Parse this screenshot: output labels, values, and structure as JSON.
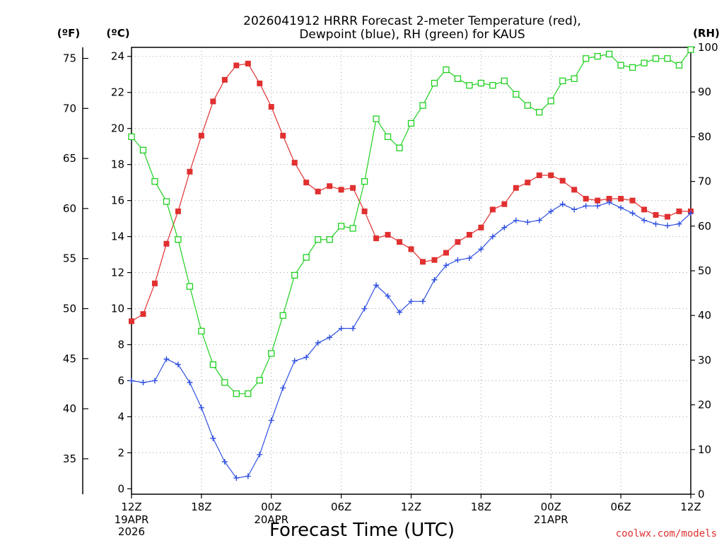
{
  "chart_data": {
    "type": "line",
    "title_line1": "2026041912 HRRR Forecast 2-meter Temperature (red),",
    "title_line2": "Dewpoint (blue), RH (green) for KAUS",
    "xlabel": "Forecast Time (UTC)",
    "credit": "coolwx.com/models",
    "units": {
      "fahrenheit": "(ºF)",
      "celsius": "(ºC)",
      "rh": "(RH)"
    },
    "x_tick_labels": [
      {
        "hour": 0,
        "line1": "12Z",
        "line2": "19APR",
        "line3": "2026"
      },
      {
        "hour": 6,
        "line1": "18Z",
        "line2": "",
        "line3": ""
      },
      {
        "hour": 12,
        "line1": "00Z",
        "line2": "20APR",
        "line3": ""
      },
      {
        "hour": 18,
        "line1": "06Z",
        "line2": "",
        "line3": ""
      },
      {
        "hour": 24,
        "line1": "12Z",
        "line2": "",
        "line3": ""
      },
      {
        "hour": 30,
        "line1": "18Z",
        "line2": "",
        "line3": ""
      },
      {
        "hour": 36,
        "line1": "00Z",
        "line2": "21APR",
        "line3": ""
      },
      {
        "hour": 42,
        "line1": "06Z",
        "line2": "",
        "line3": ""
      },
      {
        "hour": 48,
        "line1": "12Z",
        "line2": "",
        "line3": ""
      }
    ],
    "xlim": [
      0,
      48
    ],
    "celsius_ticks": [
      0,
      2,
      4,
      6,
      8,
      10,
      12,
      14,
      16,
      18,
      20,
      22,
      24
    ],
    "ylim_celsius": [
      -0.3,
      24.5
    ],
    "fahrenheit_ticks": [
      35,
      40,
      45,
      50,
      55,
      60,
      65,
      70,
      75
    ],
    "rh_ticks": [
      0,
      10,
      20,
      30,
      40,
      50,
      60,
      70,
      80,
      90,
      100
    ],
    "ylim_rh": [
      0,
      100
    ],
    "grid": true,
    "series": [
      {
        "name": "Temperature",
        "color": "#e03030",
        "marker": "filled-square",
        "units": "celsius",
        "values": [
          9.3,
          9.7,
          11.4,
          13.6,
          15.4,
          17.6,
          19.6,
          21.5,
          22.7,
          23.5,
          23.6,
          22.5,
          21.2,
          19.6,
          18.1,
          17.0,
          16.5,
          16.8,
          16.6,
          16.7,
          15.4,
          13.9,
          14.1,
          13.7,
          13.3,
          12.6,
          12.7,
          13.1,
          13.7,
          14.1,
          14.5,
          15.5,
          15.8,
          16.7,
          17.0,
          17.4,
          17.4,
          17.1,
          16.6,
          16.1,
          16.0,
          16.1,
          16.1,
          16.0,
          15.5,
          15.2,
          15.1,
          15.4,
          15.4
        ]
      },
      {
        "name": "Dewpoint",
        "color": "#3050e0",
        "marker": "plus",
        "units": "celsius",
        "values": [
          6.0,
          5.9,
          6.0,
          7.2,
          6.9,
          5.9,
          4.5,
          2.8,
          1.5,
          0.6,
          0.7,
          1.9,
          3.8,
          5.6,
          7.1,
          7.3,
          8.1,
          8.4,
          8.9,
          8.9,
          10.0,
          11.3,
          10.7,
          9.8,
          10.4,
          10.4,
          11.6,
          12.4,
          12.7,
          12.8,
          13.3,
          14.0,
          14.5,
          14.9,
          14.8,
          14.9,
          15.4,
          15.8,
          15.5,
          15.7,
          15.7,
          15.9,
          15.6,
          15.3,
          14.9,
          14.7,
          14.6,
          14.7,
          15.3
        ]
      },
      {
        "name": "RH",
        "color": "#20d020",
        "marker": "open-square",
        "units": "percent",
        "values": [
          80.0,
          77.0,
          70.0,
          65.5,
          57.0,
          46.5,
          36.5,
          29.0,
          25.0,
          22.5,
          22.5,
          25.5,
          31.5,
          40.0,
          49.0,
          53.0,
          57.0,
          57.0,
          60.0,
          59.5,
          70.0,
          84.0,
          80.0,
          77.5,
          83.0,
          87.0,
          92.0,
          95.0,
          93.0,
          91.5,
          92.0,
          91.5,
          92.5,
          89.5,
          87.0,
          85.5,
          88.0,
          92.5,
          93.0,
          97.5,
          98.0,
          98.5,
          96.0,
          95.5,
          96.5,
          97.5,
          97.5,
          96.0,
          99.5
        ]
      }
    ]
  }
}
